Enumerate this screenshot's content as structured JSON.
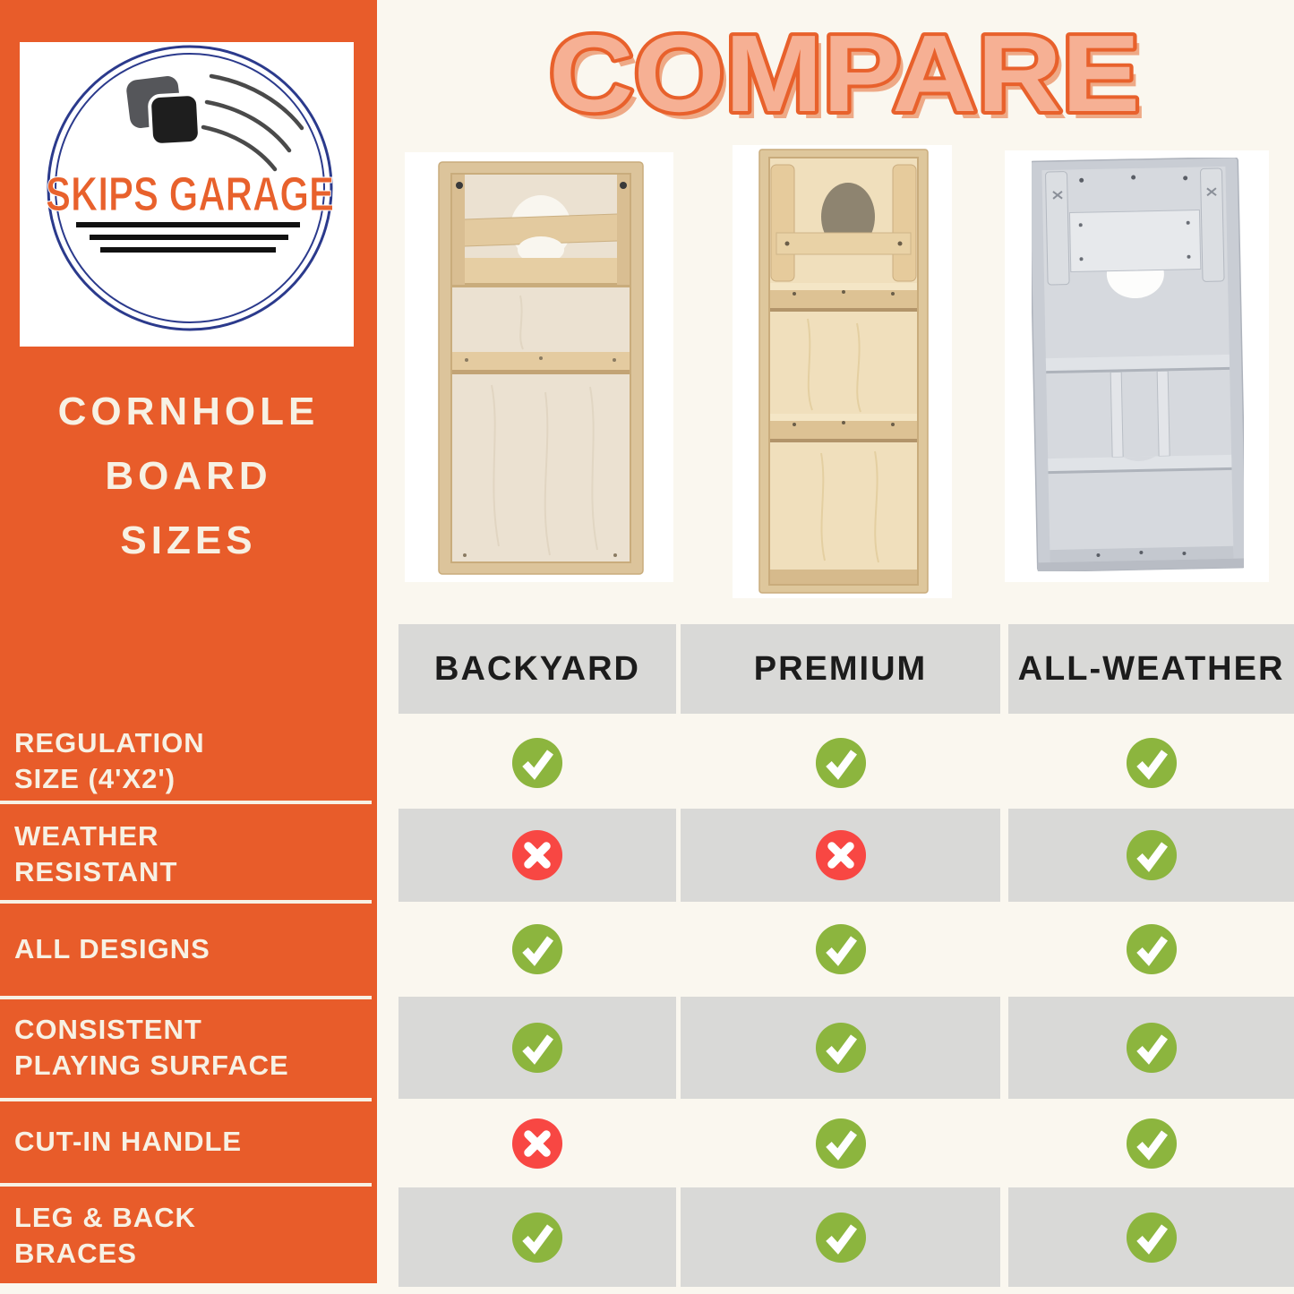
{
  "header": {
    "compare_title": "COMPARE"
  },
  "sidebar": {
    "logo": {
      "brand": "SKIPS GARAGE"
    },
    "title_lines": [
      "CORNHOLE",
      "BOARD",
      "SIZES"
    ],
    "features": [
      "REGULATION\nSIZE (4'X2')",
      "WEATHER\nRESISTANT",
      "ALL DESIGNS",
      "CONSISTENT\nPLAYING SURFACE",
      "CUT-IN HANDLE",
      "LEG & BACK\nBRACES"
    ]
  },
  "chart_data": {
    "type": "table",
    "title": "COMPARE",
    "columns": [
      "BACKYARD",
      "PREMIUM",
      "ALL-WEATHER"
    ],
    "rows": [
      {
        "feature": "REGULATION SIZE (4'X2')",
        "values": [
          true,
          true,
          true
        ]
      },
      {
        "feature": "WEATHER RESISTANT",
        "values": [
          false,
          false,
          true
        ]
      },
      {
        "feature": "ALL DESIGNS",
        "values": [
          true,
          true,
          true
        ]
      },
      {
        "feature": "CONSISTENT PLAYING SURFACE",
        "values": [
          true,
          true,
          true
        ]
      },
      {
        "feature": "CUT-IN HANDLE",
        "values": [
          false,
          true,
          true
        ]
      },
      {
        "feature": "LEG & BACK BRACES",
        "values": [
          true,
          true,
          true
        ]
      }
    ],
    "legend": {
      "check": "feature included",
      "cross": "feature not included"
    }
  },
  "board_photos": [
    "backyard-board-photo",
    "premium-board-photo",
    "all-weather-board-photo"
  ],
  "colors": {
    "orange": "#E85C2A",
    "cream": "#FAF7EF",
    "panel_text": "#F7F1E4",
    "band": "#D9D9D7",
    "header_text": "#1C1C1C",
    "check": "#8CB53E",
    "cross": "#F84743",
    "title_fill": "#F6B094",
    "title_stroke": "#E8612C",
    "navy": "#2B3A8C",
    "brand_orange": "#E8612C"
  }
}
